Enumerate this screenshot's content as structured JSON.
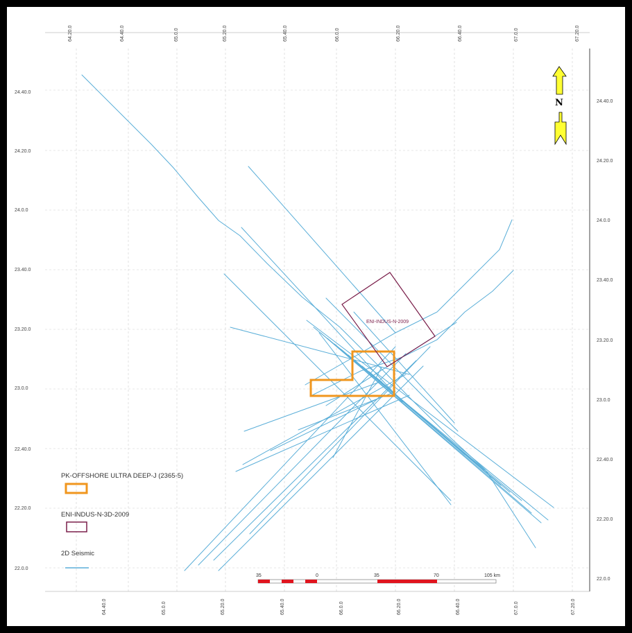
{
  "map": {
    "top_ticks": [
      "64.20.0",
      "64.40.0",
      "65.0.0",
      "65.20.0",
      "65.40.0",
      "66.0.0",
      "66.20.0",
      "66.40.0",
      "67.0.0",
      "67.20.0"
    ],
    "bottom_ticks": [
      "64.40.0",
      "65.0.0",
      "65.20.0",
      "65.40.0",
      "66.0.0",
      "66.20.0",
      "66.40.0",
      "67.0.0",
      "67.20.0"
    ],
    "left_ticks": [
      "24.40.0",
      "24.20.0",
      "24.0.0",
      "23.40.0",
      "23.20.0",
      "23.0.0",
      "22.40.0",
      "22.20.0",
      "22.0.0"
    ],
    "right_ticks": [
      "24.40.0",
      "24.20.0",
      "24.0.0",
      "23.40.0",
      "23.20.0",
      "23.0.0",
      "22.40.0",
      "22.20.0",
      "22.0.0"
    ],
    "north_label": "N",
    "block_label": "ENI-INDUS-N-2009",
    "colors": {
      "seismic": "#5aaed8",
      "block_orange": "#f0961e",
      "block_purple": "#7a1e4a",
      "scale_red": "#e0141e",
      "arrow_yellow": "#ffff33"
    }
  },
  "legend": {
    "items": [
      {
        "label": "PK-OFFSHORE ULTRA DEEP-J (2365-5)",
        "symbol": "orange-box"
      },
      {
        "label": "ENI-INDUS-N-3D-2009",
        "symbol": "purple-box"
      },
      {
        "label": "2D Seismic",
        "symbol": "blue-line"
      }
    ]
  },
  "scale_bar": {
    "labels": [
      "35",
      "0",
      "35",
      "70",
      "105 km"
    ]
  }
}
